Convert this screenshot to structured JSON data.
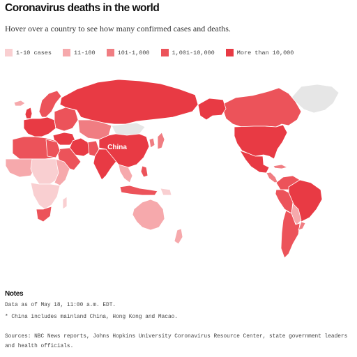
{
  "header": {
    "title": "Coronavirus deaths in the world",
    "subtitle": "Hover over a country to see how many confirmed cases and deaths."
  },
  "legend": {
    "items": [
      {
        "label": "1-10 cases",
        "color": "#f9cfd1"
      },
      {
        "label": "11-100",
        "color": "#f6a9ac"
      },
      {
        "label": "101-1,000",
        "color": "#f07d82"
      },
      {
        "label": "1,001-10,000",
        "color": "#ec535a"
      },
      {
        "label": "More than 10,000",
        "color": "#e83a44"
      }
    ]
  },
  "map": {
    "label_china": "China",
    "no_data_color": "#e6e6e6",
    "border_color": "#ffffff"
  },
  "notes": {
    "title": "Notes",
    "line1": "Data as of May 18, 11:00 a.m. EDT.",
    "line2": "* China includes mainland China, Hong Kong and Macao.",
    "line3": "Sources: NBC News reports, Johns Hopkins University Coronavirus Resource Center, state government leaders and health officials."
  }
}
